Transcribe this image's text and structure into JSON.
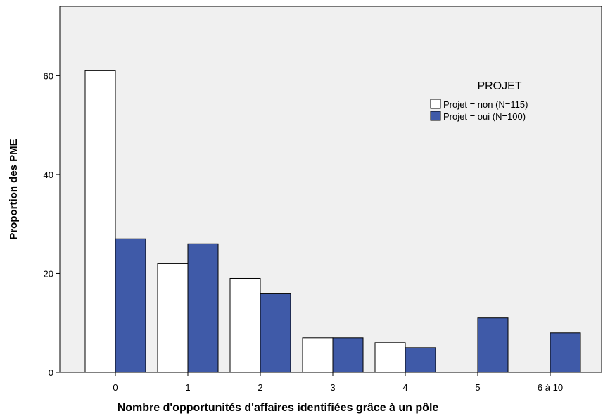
{
  "chart_data": {
    "type": "bar",
    "categories": [
      "0",
      "1",
      "2",
      "3",
      "4",
      "5",
      "6 à 10"
    ],
    "series": [
      {
        "name": "Projet = non (N=115)",
        "values": [
          61,
          22,
          19,
          7,
          6,
          0,
          0
        ],
        "color": "#ffffff"
      },
      {
        "name": "Projet = oui (N=100)",
        "values": [
          27,
          26,
          16,
          7,
          5,
          11,
          8
        ],
        "color": "#3f5aa8"
      }
    ],
    "xlabel": "Nombre d'opportunités d'affaires identifiées grâce à un pôle",
    "ylabel": "Proportion des PME",
    "ylim": [
      0,
      74
    ],
    "yticks": [
      0,
      20,
      40,
      60
    ],
    "legend": {
      "title": "PROJET",
      "position": "top-right"
    },
    "plot_background": "#f0f0f0",
    "grid": false
  }
}
